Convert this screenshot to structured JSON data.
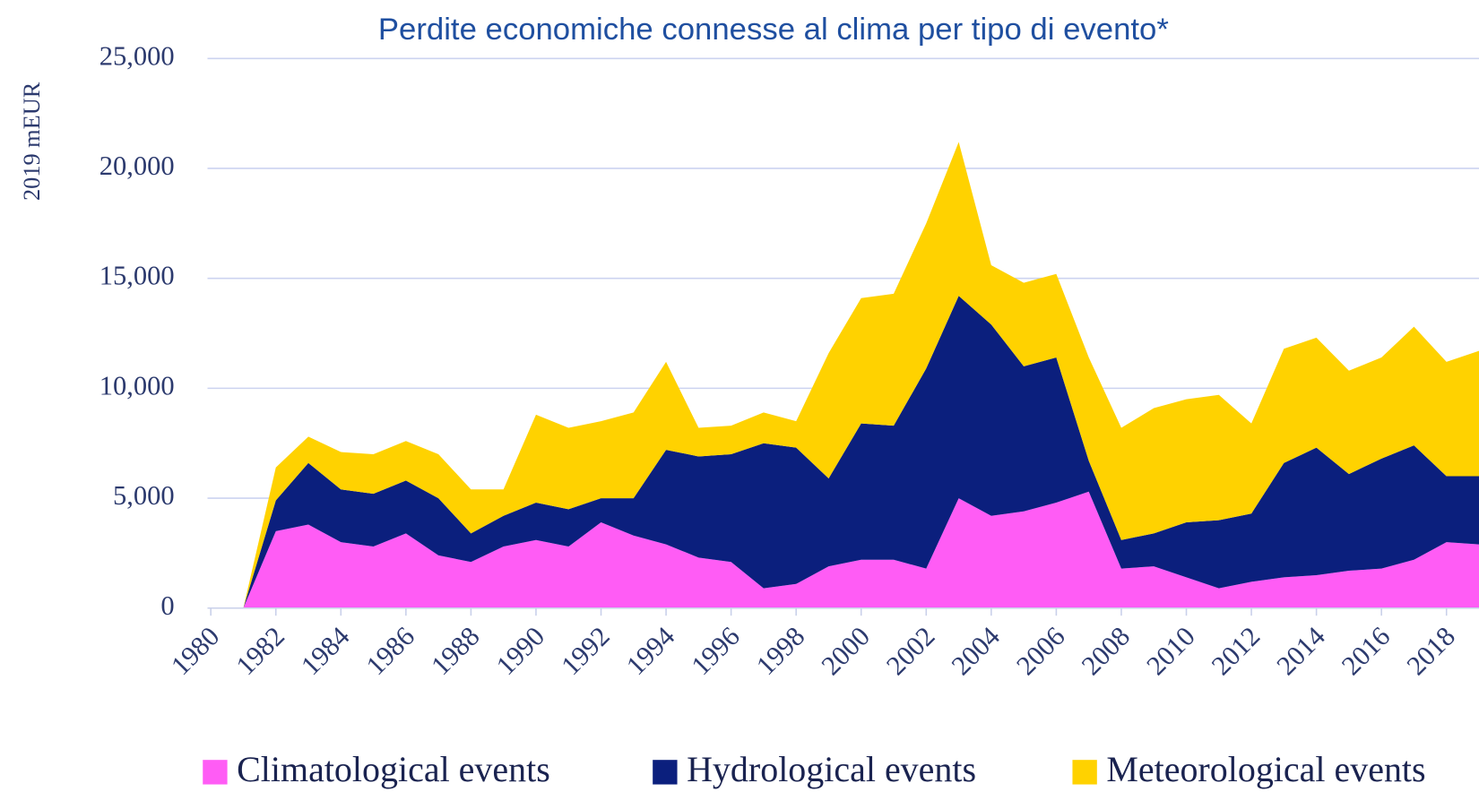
{
  "chart_data": {
    "type": "stacked-area",
    "title": "Perdite economiche connesse al clima per tipo di evento*",
    "y_label": "2019 mEUR",
    "x": [
      1981,
      1982,
      1983,
      1984,
      1985,
      1986,
      1987,
      1988,
      1989,
      1990,
      1991,
      1992,
      1993,
      1994,
      1995,
      1996,
      1997,
      1998,
      1999,
      2000,
      2001,
      2002,
      2003,
      2004,
      2005,
      2006,
      2007,
      2008,
      2009,
      2010,
      2011,
      2012,
      2013,
      2014,
      2015,
      2016,
      2017,
      2018,
      2019
    ],
    "series": [
      {
        "name": "Climatological events",
        "color": "#ff5cf5",
        "values": [
          0,
          3500,
          3800,
          3000,
          2800,
          3400,
          2400,
          2100,
          2800,
          3100,
          2800,
          3900,
          3300,
          2900,
          2300,
          2100,
          900,
          1100,
          1900,
          2200,
          2200,
          1800,
          5000,
          4200,
          4400,
          4800,
          5300,
          1800,
          1900,
          1400,
          900,
          1200,
          1400,
          1500,
          1700,
          1800,
          2200,
          3000,
          2900
        ]
      },
      {
        "name": "Hydrological events",
        "color": "#0b1f7d",
        "values": [
          0,
          1400,
          2800,
          2400,
          2400,
          2400,
          2600,
          1300,
          1400,
          1700,
          1700,
          1100,
          1700,
          4300,
          4600,
          4900,
          6600,
          6200,
          4000,
          6200,
          6100,
          9100,
          9200,
          8700,
          6600,
          6600,
          1400,
          1300,
          1500,
          2500,
          3100,
          3100,
          5200,
          5800,
          4400,
          5000,
          5200,
          3000,
          3100
        ]
      },
      {
        "name": "Meteorological events",
        "color": "#ffd200",
        "values": [
          0,
          1500,
          1200,
          1700,
          1800,
          1800,
          2000,
          2000,
          1200,
          4000,
          3700,
          3500,
          3900,
          4000,
          1300,
          1300,
          1400,
          1200,
          5700,
          5700,
          6000,
          6600,
          7000,
          2700,
          3800,
          3800,
          4700,
          5100,
          5700,
          5600,
          5700,
          4100,
          5200,
          5000,
          4700,
          4600,
          5400,
          5200,
          5700
        ]
      }
    ],
    "xlim": [
      1980,
      2019
    ],
    "xticks": [
      1980,
      1982,
      1984,
      1986,
      1988,
      1990,
      1992,
      1994,
      1996,
      1998,
      2000,
      2002,
      2004,
      2006,
      2008,
      2010,
      2012,
      2014,
      2016,
      2018
    ],
    "ylim": [
      0,
      25000
    ],
    "yticks": [
      0,
      {
        "value": 5000,
        "label": "5,000"
      },
      {
        "value": 10000,
        "label": "10,000"
      },
      {
        "value": 15000,
        "label": "15,000"
      },
      {
        "value": 20000,
        "label": "20,000"
      },
      {
        "value": 25000,
        "label": "25,000"
      }
    ],
    "grid": true,
    "legend": "bottom"
  }
}
